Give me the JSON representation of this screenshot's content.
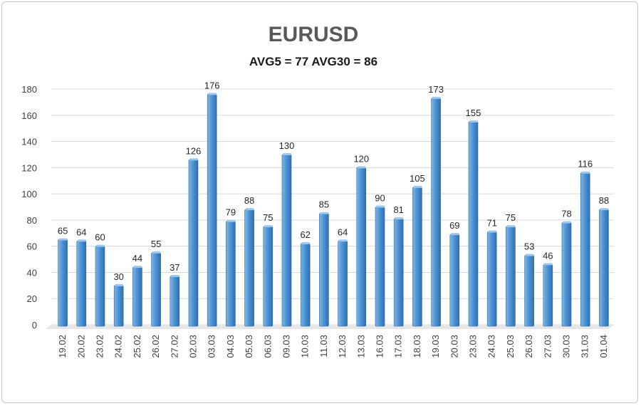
{
  "chart_data": {
    "type": "bar",
    "title": "EURUSD",
    "subtitle": "AVG5 = 77 AVG30 = 86",
    "xlabel": "",
    "ylabel": "",
    "ylim": [
      0,
      180
    ],
    "yticks": [
      0,
      20,
      40,
      60,
      80,
      100,
      120,
      140,
      160,
      180
    ],
    "grid": true,
    "legend": "none",
    "bar_color": "#4a90d0",
    "categories": [
      "19.02",
      "20.02",
      "23.02",
      "24.02",
      "25.02",
      "26.02",
      "27.02",
      "02.03",
      "03.03",
      "04.03",
      "05.03",
      "06.03",
      "09.03",
      "10.03",
      "11.03",
      "12.03",
      "13.03",
      "16.03",
      "17.03",
      "18.03",
      "19.03",
      "20.03",
      "23.03",
      "24.03",
      "25.03",
      "26.03",
      "27.03",
      "30.03",
      "31.03",
      "01.04"
    ],
    "values": [
      65,
      64,
      60,
      30,
      44,
      55,
      37,
      126,
      176,
      79,
      88,
      75,
      130,
      62,
      85,
      64,
      120,
      90,
      81,
      105,
      173,
      69,
      155,
      71,
      75,
      53,
      46,
      78,
      116,
      88
    ]
  }
}
